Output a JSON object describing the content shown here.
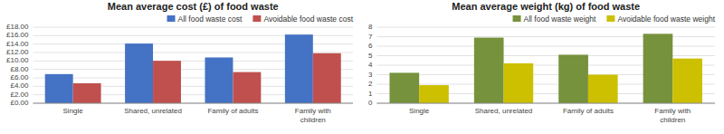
{
  "chart_data": [
    {
      "type": "bar",
      "title": "Mean average cost (£) of food waste",
      "categories": [
        "Single",
        "Shared, unrelated",
        "Family of adults",
        "Family with\nchildren"
      ],
      "series": [
        {
          "name": "All food waste cost",
          "color": "#4472C4",
          "values": [
            6.89,
            14.12,
            10.83,
            16.25
          ]
        },
        {
          "name": "Avoidable food waste cost",
          "color": "#C0504D",
          "values": [
            4.72,
            10.04,
            7.37,
            11.83
          ]
        }
      ],
      "ylim": [
        0,
        18
      ],
      "yticks": [
        {
          "value": 0,
          "label": "£0.00"
        },
        {
          "value": 2,
          "label": "£2.00"
        },
        {
          "value": 4,
          "label": "£4.00"
        },
        {
          "value": 6,
          "label": "£6.00"
        },
        {
          "value": 8,
          "label": "£8.00"
        },
        {
          "value": 10,
          "label": "£10.00"
        },
        {
          "value": 12,
          "label": "£12.00"
        },
        {
          "value": 14,
          "label": "£14.00"
        },
        {
          "value": 16,
          "label": "£16.00"
        },
        {
          "value": 18,
          "label": "£18.00"
        }
      ],
      "grid": true,
      "legend": "upper right"
    },
    {
      "type": "bar",
      "title": "Mean average weight (kg) of food waste",
      "categories": [
        "Single",
        "Shared, unrelated",
        "Family of adults",
        "Family with\nchildren"
      ],
      "series": [
        {
          "name": "All food waste weight",
          "color": "#76923C",
          "values": [
            3.2,
            6.9,
            5.1,
            7.3
          ]
        },
        {
          "name": "Avoidable food waste weight",
          "color": "#CCC000",
          "values": [
            1.9,
            4.2,
            3.0,
            4.7
          ]
        }
      ],
      "ylim": [
        0,
        8
      ],
      "yticks": [
        0,
        1,
        2,
        3,
        4,
        5,
        6,
        7,
        8
      ],
      "grid": true,
      "legend": "upper right"
    }
  ]
}
